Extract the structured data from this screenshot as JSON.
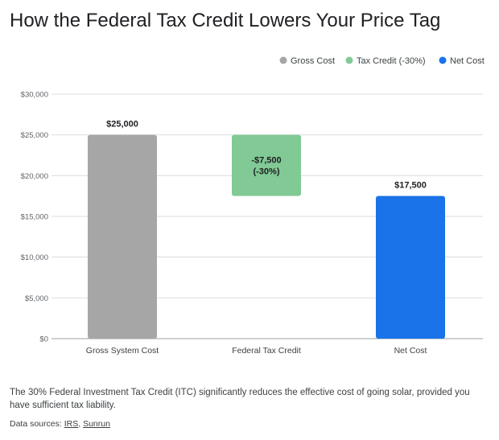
{
  "title": "How the Federal Tax Credit Lowers Your Price Tag",
  "chart_data": {
    "type": "bar",
    "subtype": "waterfall",
    "categories": [
      "Gross System Cost",
      "Federal Tax Credit",
      "Net Cost"
    ],
    "series": [
      {
        "name": "Gross Cost",
        "color": "#a6a6a6",
        "start": 0,
        "end": 25000,
        "label": "$25,000"
      },
      {
        "name": "Tax Credit (-30%)",
        "color": "#81c995",
        "start": 17500,
        "end": 25000,
        "label_lines": [
          "-$7,500",
          "(-30%)"
        ]
      },
      {
        "name": "Net Cost",
        "color": "#1a73e8",
        "start": 0,
        "end": 17500,
        "label": "$17,500"
      }
    ],
    "ylim": [
      0,
      30000
    ],
    "yticks": [
      0,
      5000,
      10000,
      15000,
      20000,
      25000,
      30000
    ],
    "ytick_labels": [
      "$0",
      "$5,000",
      "$10,000",
      "$15,000",
      "$20,000",
      "$25,000",
      "$30,000"
    ],
    "legend": {
      "position": "top-right",
      "entries": [
        "Gross Cost",
        "Tax Credit (-30%)",
        "Net Cost"
      ]
    },
    "grid": true
  },
  "caption": "The 30% Federal Investment Tax Credit (ITC) significantly reduces the effective cost of going solar, provided you have sufficient tax liability.",
  "sources": {
    "prefix": "Data sources: ",
    "links": [
      {
        "label": "IRS"
      },
      {
        "label": "Sunrun"
      }
    ]
  }
}
